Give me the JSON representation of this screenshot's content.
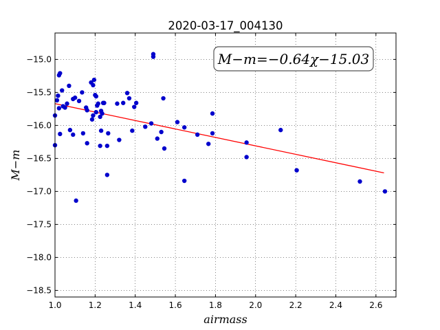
{
  "chart_data": {
    "type": "scatter",
    "title": "2020-03-17_004130",
    "xlabel": "airmass",
    "ylabel": "M−m",
    "xlim": [
      1.0,
      2.7
    ],
    "ylim": [
      -18.6,
      -14.6
    ],
    "y_inverted": true,
    "grid": true,
    "xticks": [
      1.0,
      1.2,
      1.4,
      1.6,
      1.8,
      2.0,
      2.2,
      2.4,
      2.6
    ],
    "xtick_labels": [
      "1.0",
      "1.2",
      "1.4",
      "1.6",
      "1.8",
      "2.0",
      "2.2",
      "2.4",
      "2.6"
    ],
    "yticks": [
      -18.5,
      -18.0,
      -17.5,
      -17.0,
      -16.5,
      -16.0,
      -15.5,
      -15.0
    ],
    "ytick_labels": [
      "−18.5",
      "−18.0",
      "−17.5",
      "−17.0",
      "−16.5",
      "−16.0",
      "−15.5",
      "−15.0"
    ],
    "fit_annotation": "M−m=−0.64χ−15.03",
    "fit_line": {
      "slope": -0.64,
      "intercept": -15.03,
      "x_range": [
        1.0,
        2.64
      ],
      "color": "#ff0000"
    },
    "point_color": "#0000cc",
    "points": [
      [
        1.0,
        -15.85
      ],
      [
        1.0,
        -16.3
      ],
      [
        1.01,
        -15.62
      ],
      [
        1.015,
        -15.55
      ],
      [
        1.02,
        -15.24
      ],
      [
        1.025,
        -15.21
      ],
      [
        1.02,
        -15.74
      ],
      [
        1.025,
        -16.13
      ],
      [
        1.035,
        -15.47
      ],
      [
        1.04,
        -15.71
      ],
      [
        1.05,
        -15.73
      ],
      [
        1.06,
        -15.67
      ],
      [
        1.07,
        -15.4
      ],
      [
        1.075,
        -16.07
      ],
      [
        1.09,
        -15.6
      ],
      [
        1.09,
        -16.14
      ],
      [
        1.1,
        -15.58
      ],
      [
        1.105,
        -17.14
      ],
      [
        1.12,
        -15.63
      ],
      [
        1.135,
        -15.5
      ],
      [
        1.14,
        -16.12
      ],
      [
        1.155,
        -15.73
      ],
      [
        1.16,
        -15.77
      ],
      [
        1.16,
        -16.27
      ],
      [
        1.18,
        -15.35
      ],
      [
        1.185,
        -15.91
      ],
      [
        1.19,
        -15.85
      ],
      [
        1.19,
        -15.39
      ],
      [
        1.195,
        -15.31
      ],
      [
        1.2,
        -15.54
      ],
      [
        1.205,
        -15.56
      ],
      [
        1.205,
        -15.8
      ],
      [
        1.21,
        -15.7
      ],
      [
        1.215,
        -15.67
      ],
      [
        1.225,
        -16.31
      ],
      [
        1.225,
        -15.87
      ],
      [
        1.23,
        -15.78
      ],
      [
        1.23,
        -16.08
      ],
      [
        1.235,
        -15.82
      ],
      [
        1.24,
        -15.66
      ],
      [
        1.245,
        -15.66
      ],
      [
        1.26,
        -16.31
      ],
      [
        1.26,
        -16.75
      ],
      [
        1.265,
        -16.12
      ],
      [
        1.31,
        -15.67
      ],
      [
        1.32,
        -16.22
      ],
      [
        1.34,
        -15.66
      ],
      [
        1.36,
        -15.51
      ],
      [
        1.37,
        -15.59
      ],
      [
        1.385,
        -16.08
      ],
      [
        1.395,
        -15.72
      ],
      [
        1.405,
        -15.66
      ],
      [
        1.45,
        -16.02
      ],
      [
        1.48,
        -15.97
      ],
      [
        1.49,
        -14.92
      ],
      [
        1.49,
        -14.96
      ],
      [
        1.51,
        -16.2
      ],
      [
        1.53,
        -16.1
      ],
      [
        1.54,
        -15.59
      ],
      [
        1.545,
        -16.35
      ],
      [
        1.61,
        -15.95
      ],
      [
        1.645,
        -16.03
      ],
      [
        1.645,
        -16.84
      ],
      [
        1.71,
        -16.14
      ],
      [
        1.765,
        -16.28
      ],
      [
        1.785,
        -15.82
      ],
      [
        1.785,
        -16.12
      ],
      [
        1.955,
        -16.26
      ],
      [
        1.955,
        -16.48
      ],
      [
        2.125,
        -16.07
      ],
      [
        2.205,
        -16.68
      ],
      [
        2.52,
        -16.85
      ],
      [
        2.645,
        -17.0
      ]
    ]
  }
}
